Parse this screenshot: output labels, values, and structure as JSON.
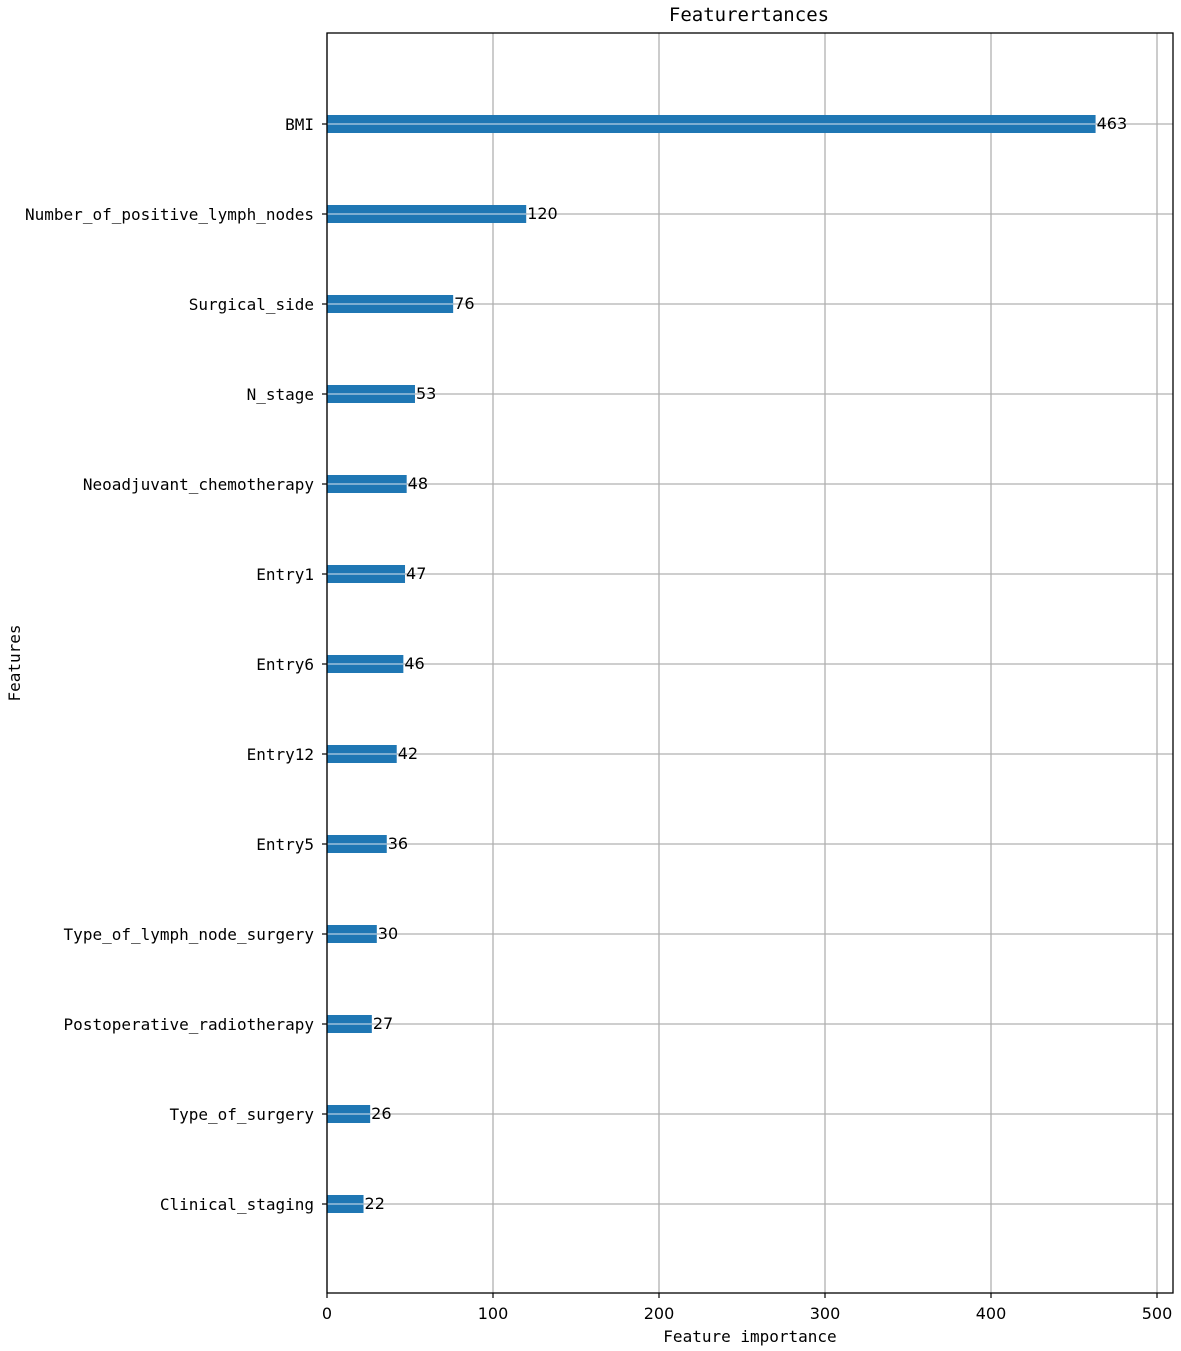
{
  "chart_data": {
    "type": "bar",
    "orientation": "horizontal",
    "title": "Featurertances",
    "xlabel": "Feature importance",
    "ylabel": "Features",
    "xlim": [
      0,
      510
    ],
    "xticks": [
      0,
      100,
      200,
      300,
      400,
      500
    ],
    "grid": true,
    "bar_color": "#1f77b4",
    "categories": [
      "BMI",
      "Number_of_positive_lymph_nodes",
      "Surgical_side",
      "N_stage",
      "Neoadjuvant_chemotherapy",
      "Entry1",
      "Entry6",
      "Entry12",
      "Entry5",
      "Type_of_lymph_node_surgery",
      "Postoperative_radiotherapy",
      "Type_of_surgery",
      "Clinical_staging"
    ],
    "values": [
      463,
      120,
      76,
      53,
      48,
      47,
      46,
      42,
      36,
      30,
      27,
      26,
      22
    ]
  }
}
